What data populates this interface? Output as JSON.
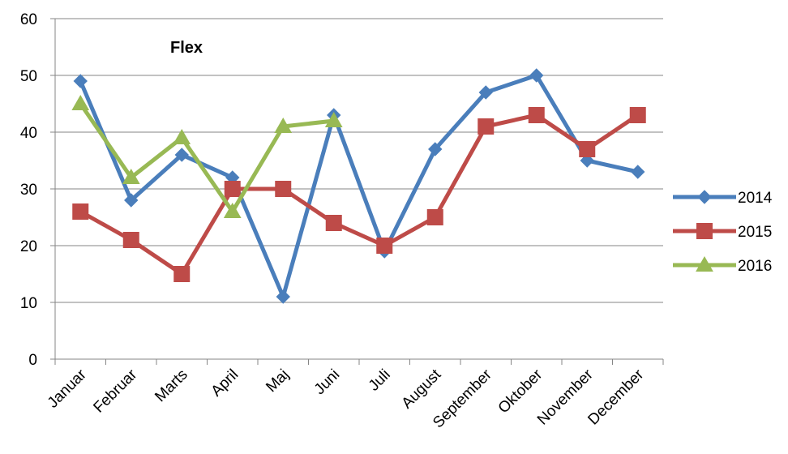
{
  "chart_data": {
    "type": "line",
    "title": "Flex",
    "xlabel": "",
    "ylabel": "",
    "categories": [
      "Januar",
      "Februar",
      "Marts",
      "April",
      "Maj",
      "Juni",
      "Juli",
      "August",
      "September",
      "Oktober",
      "November",
      "December"
    ],
    "ylim": [
      0,
      60
    ],
    "yticks": [
      0,
      10,
      20,
      30,
      40,
      50,
      60
    ],
    "grid": true,
    "legend_position": "right",
    "series": [
      {
        "name": "2014",
        "color": "#4a7ebb",
        "marker": "diamond",
        "values": [
          49,
          28,
          36,
          32,
          11,
          43,
          19,
          37,
          47,
          50,
          35,
          33
        ]
      },
      {
        "name": "2015",
        "color": "#be4b48",
        "marker": "square",
        "values": [
          26,
          21,
          15,
          30,
          30,
          24,
          20,
          25,
          41,
          43,
          37,
          43
        ]
      },
      {
        "name": "2016",
        "color": "#98b954",
        "marker": "triangle",
        "values": [
          45,
          32,
          39,
          26,
          41,
          42,
          null,
          null,
          null,
          null,
          null,
          null
        ]
      }
    ]
  }
}
